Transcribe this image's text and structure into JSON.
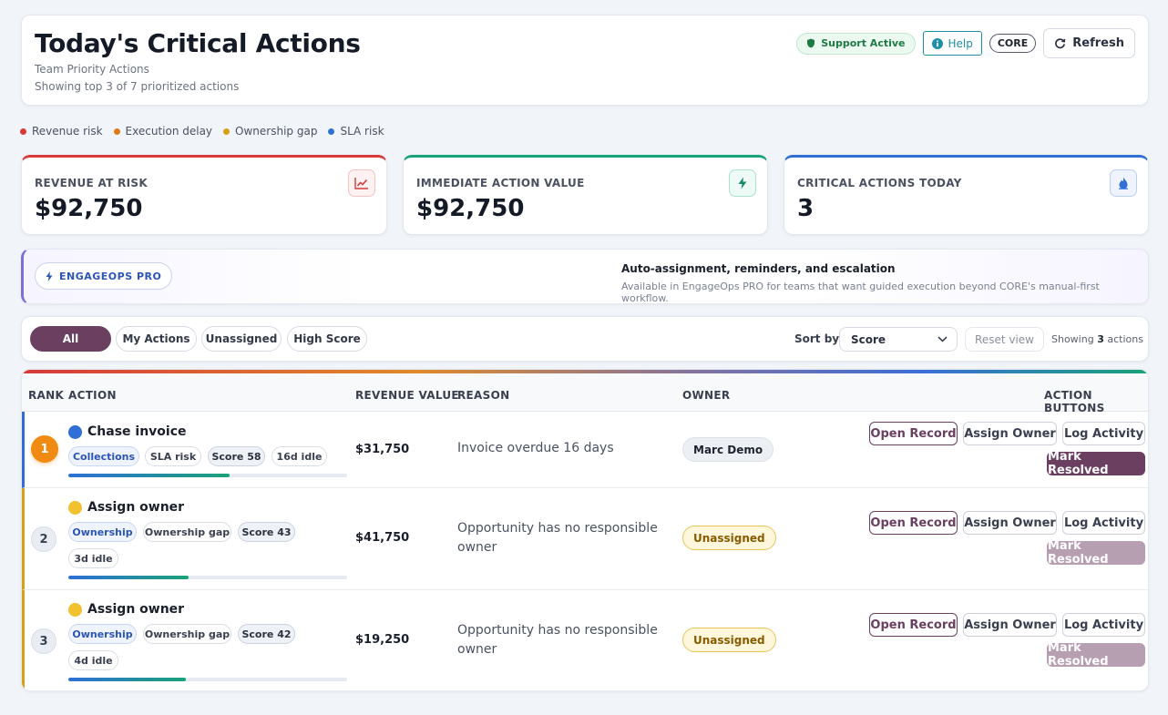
{
  "header": {
    "title": "Today's Critical Actions",
    "subtitle": "Team Priority Actions",
    "subline": "Showing top 3 of 7 prioritized actions",
    "support_badge": "Support Active",
    "help_label": "Help",
    "core_badge": "CORE",
    "refresh_label": "Refresh"
  },
  "legend": [
    {
      "label": "Revenue risk",
      "color": "#d63a3a"
    },
    {
      "label": "Execution delay",
      "color": "#e07a18"
    },
    {
      "label": "Ownership gap",
      "color": "#d7a113"
    },
    {
      "label": "SLA risk",
      "color": "#2f6fd6"
    }
  ],
  "kpis": [
    {
      "label": "REVENUE AT RISK",
      "value": "$92,750",
      "accent": "#d63a3a",
      "icon": "trend-up-icon"
    },
    {
      "label": "IMMEDIATE ACTION VALUE",
      "value": "$92,750",
      "accent": "#1aa37a",
      "icon": "lightning-icon"
    },
    {
      "label": "CRITICAL ACTIONS TODAY",
      "value": "3",
      "accent": "#2f6fd6",
      "icon": "flame-icon"
    }
  ],
  "pro": {
    "pill": "ENGAGEOPS PRO",
    "title": "Auto-assignment, reminders, and escalation",
    "desc": "Available in EngageOps PRO for teams that want guided execution beyond CORE's manual-first workflow."
  },
  "filters": {
    "chips": [
      "All",
      "My Actions",
      "Unassigned",
      "High Score"
    ],
    "active": "All",
    "sort_label": "Sort by",
    "sort_value": "Score",
    "reset_label": "Reset view",
    "showing_prefix": "Showing",
    "showing_count": "3",
    "showing_suffix": "actions"
  },
  "table": {
    "columns": {
      "rank": "RANK",
      "action": "ACTION",
      "revenue": "REVENUE VALUE",
      "reason": "REASON",
      "owner": "OWNER",
      "buttons": "ACTION BUTTONS"
    },
    "button_labels": {
      "open": "Open Record",
      "assign": "Assign Owner",
      "log": "Log Activity",
      "resolve": "Mark Resolved"
    },
    "rows": [
      {
        "rank": "1",
        "title": "Chase invoice",
        "category": "Collections",
        "risk": "SLA risk",
        "score": "Score 58",
        "idle": "16d idle",
        "progress": 0.58,
        "revenue": "$31,750",
        "reason": "Invoice overdue 16 days",
        "owner": "Marc Demo",
        "accent": "#2f6fd6",
        "icon_color": "#2f6fd6"
      },
      {
        "rank": "2",
        "title": "Assign owner",
        "category": "Ownership",
        "risk": "Ownership gap",
        "score": "Score 43",
        "idle": "3d idle",
        "progress": 0.43,
        "revenue": "$41,750",
        "reason": "Opportunity has no responsible owner",
        "owner": "Unassigned",
        "accent": "#d7a113",
        "icon_color": "#f2c12e"
      },
      {
        "rank": "3",
        "title": "Assign owner",
        "category": "Ownership",
        "risk": "Ownership gap",
        "score": "Score 42",
        "idle": "4d idle",
        "progress": 0.42,
        "revenue": "$19,250",
        "reason": "Opportunity has no responsible owner",
        "owner": "Unassigned",
        "accent": "#d7a113",
        "icon_color": "#f2c12e"
      }
    ]
  }
}
